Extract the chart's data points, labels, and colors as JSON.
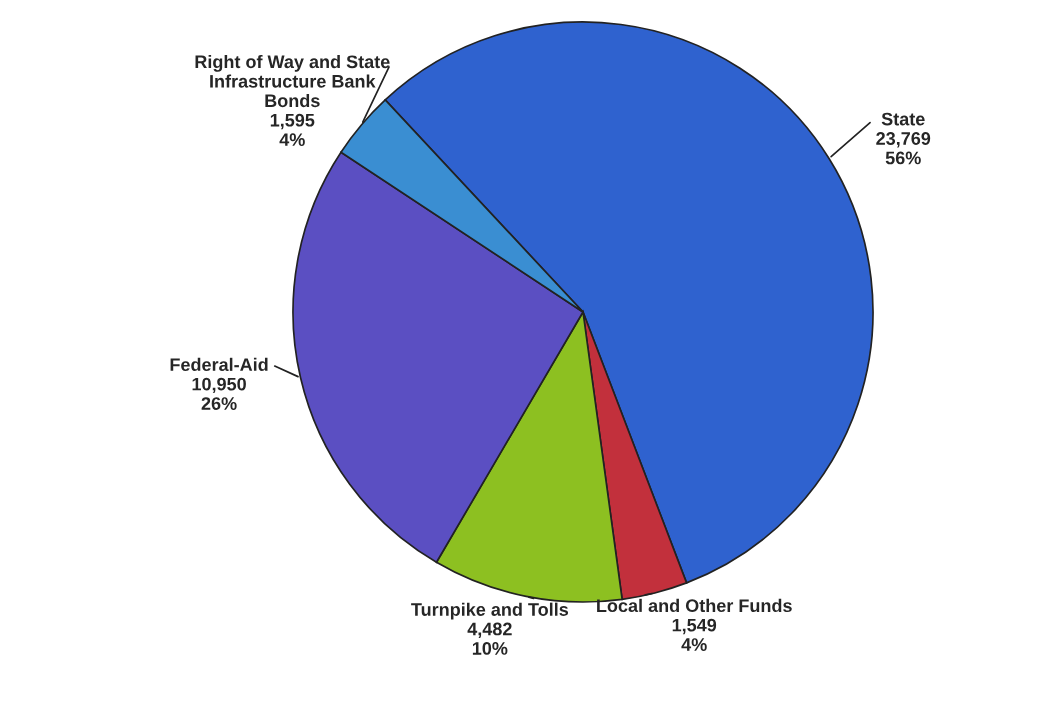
{
  "chart_data": {
    "type": "pie",
    "categories": [
      "State",
      "Local and Other Funds",
      "Turnpike and Tolls",
      "Federal-Aid",
      "Right of Way and State\nInfrastructure Bank\nBonds"
    ],
    "values": [
      23769,
      1549,
      4482,
      10950,
      1595
    ],
    "value_labels": [
      "23,769\n56%",
      "1,549\n4%",
      "4,482\n10%",
      "10,950\n26%",
      "1,595\n4%"
    ],
    "colors": [
      "#2f62cf",
      "#c2303c",
      "#8dc021",
      "#5b4fc2",
      "#3a8ed2"
    ],
    "legend": false
  }
}
